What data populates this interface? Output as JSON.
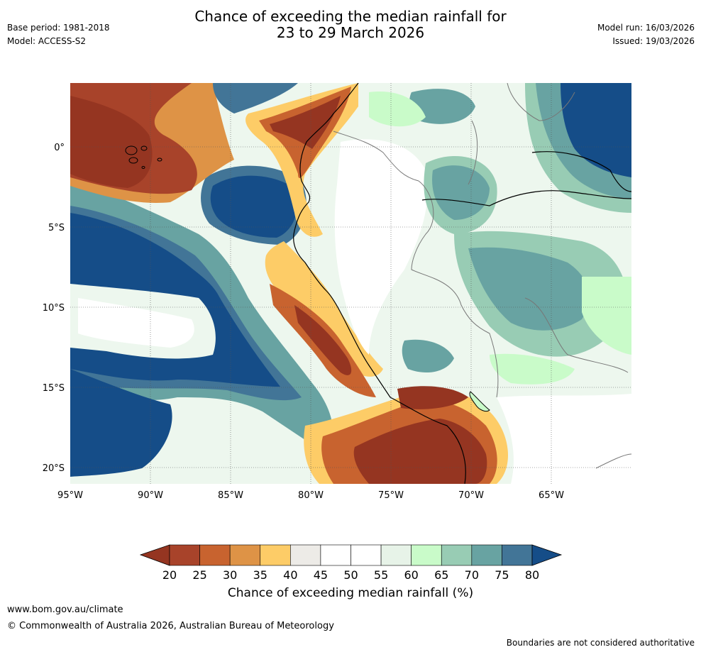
{
  "header": {
    "base_period": "Base period: 1981-2018",
    "model": "Model: ACCESS-S2",
    "title_line1": "Chance of exceeding the median rainfall for",
    "title_line2": "23 to 29 March 2026",
    "model_run": "Model run: 16/03/2026",
    "issued": "Issued: 19/03/2026"
  },
  "map": {
    "lon_range": [
      -95,
      -60
    ],
    "lat_range": [
      -21,
      4
    ],
    "x_ticks": [
      "95°W",
      "90°W",
      "85°W",
      "80°W",
      "75°W",
      "70°W",
      "65°W"
    ],
    "y_ticks": [
      "0°",
      "5°S",
      "10°S",
      "15°S",
      "20°S"
    ]
  },
  "colorbar": {
    "ticks": [
      "20",
      "25",
      "30",
      "35",
      "40",
      "45",
      "50",
      "55",
      "60",
      "65",
      "70",
      "75",
      "80"
    ],
    "colors": [
      "#a8432a",
      "#c8632f",
      "#de9346",
      "#fdcc67",
      "#edebe7",
      "#ffffff",
      "#ffffff",
      "#e7f3e8",
      "#c9fbc9",
      "#98ccb4",
      "#68a3a2",
      "#427597"
    ],
    "under_color": "#953521",
    "over_color": "#154d88",
    "label": "Chance of exceeding median rainfall (%)"
  },
  "footer": {
    "url": "www.bom.gov.au/climate",
    "copyright": "© Commonwealth of Australia 2026, Australian Bureau of Meteorology",
    "disclaimer": "Boundaries are not considered authoritative"
  }
}
